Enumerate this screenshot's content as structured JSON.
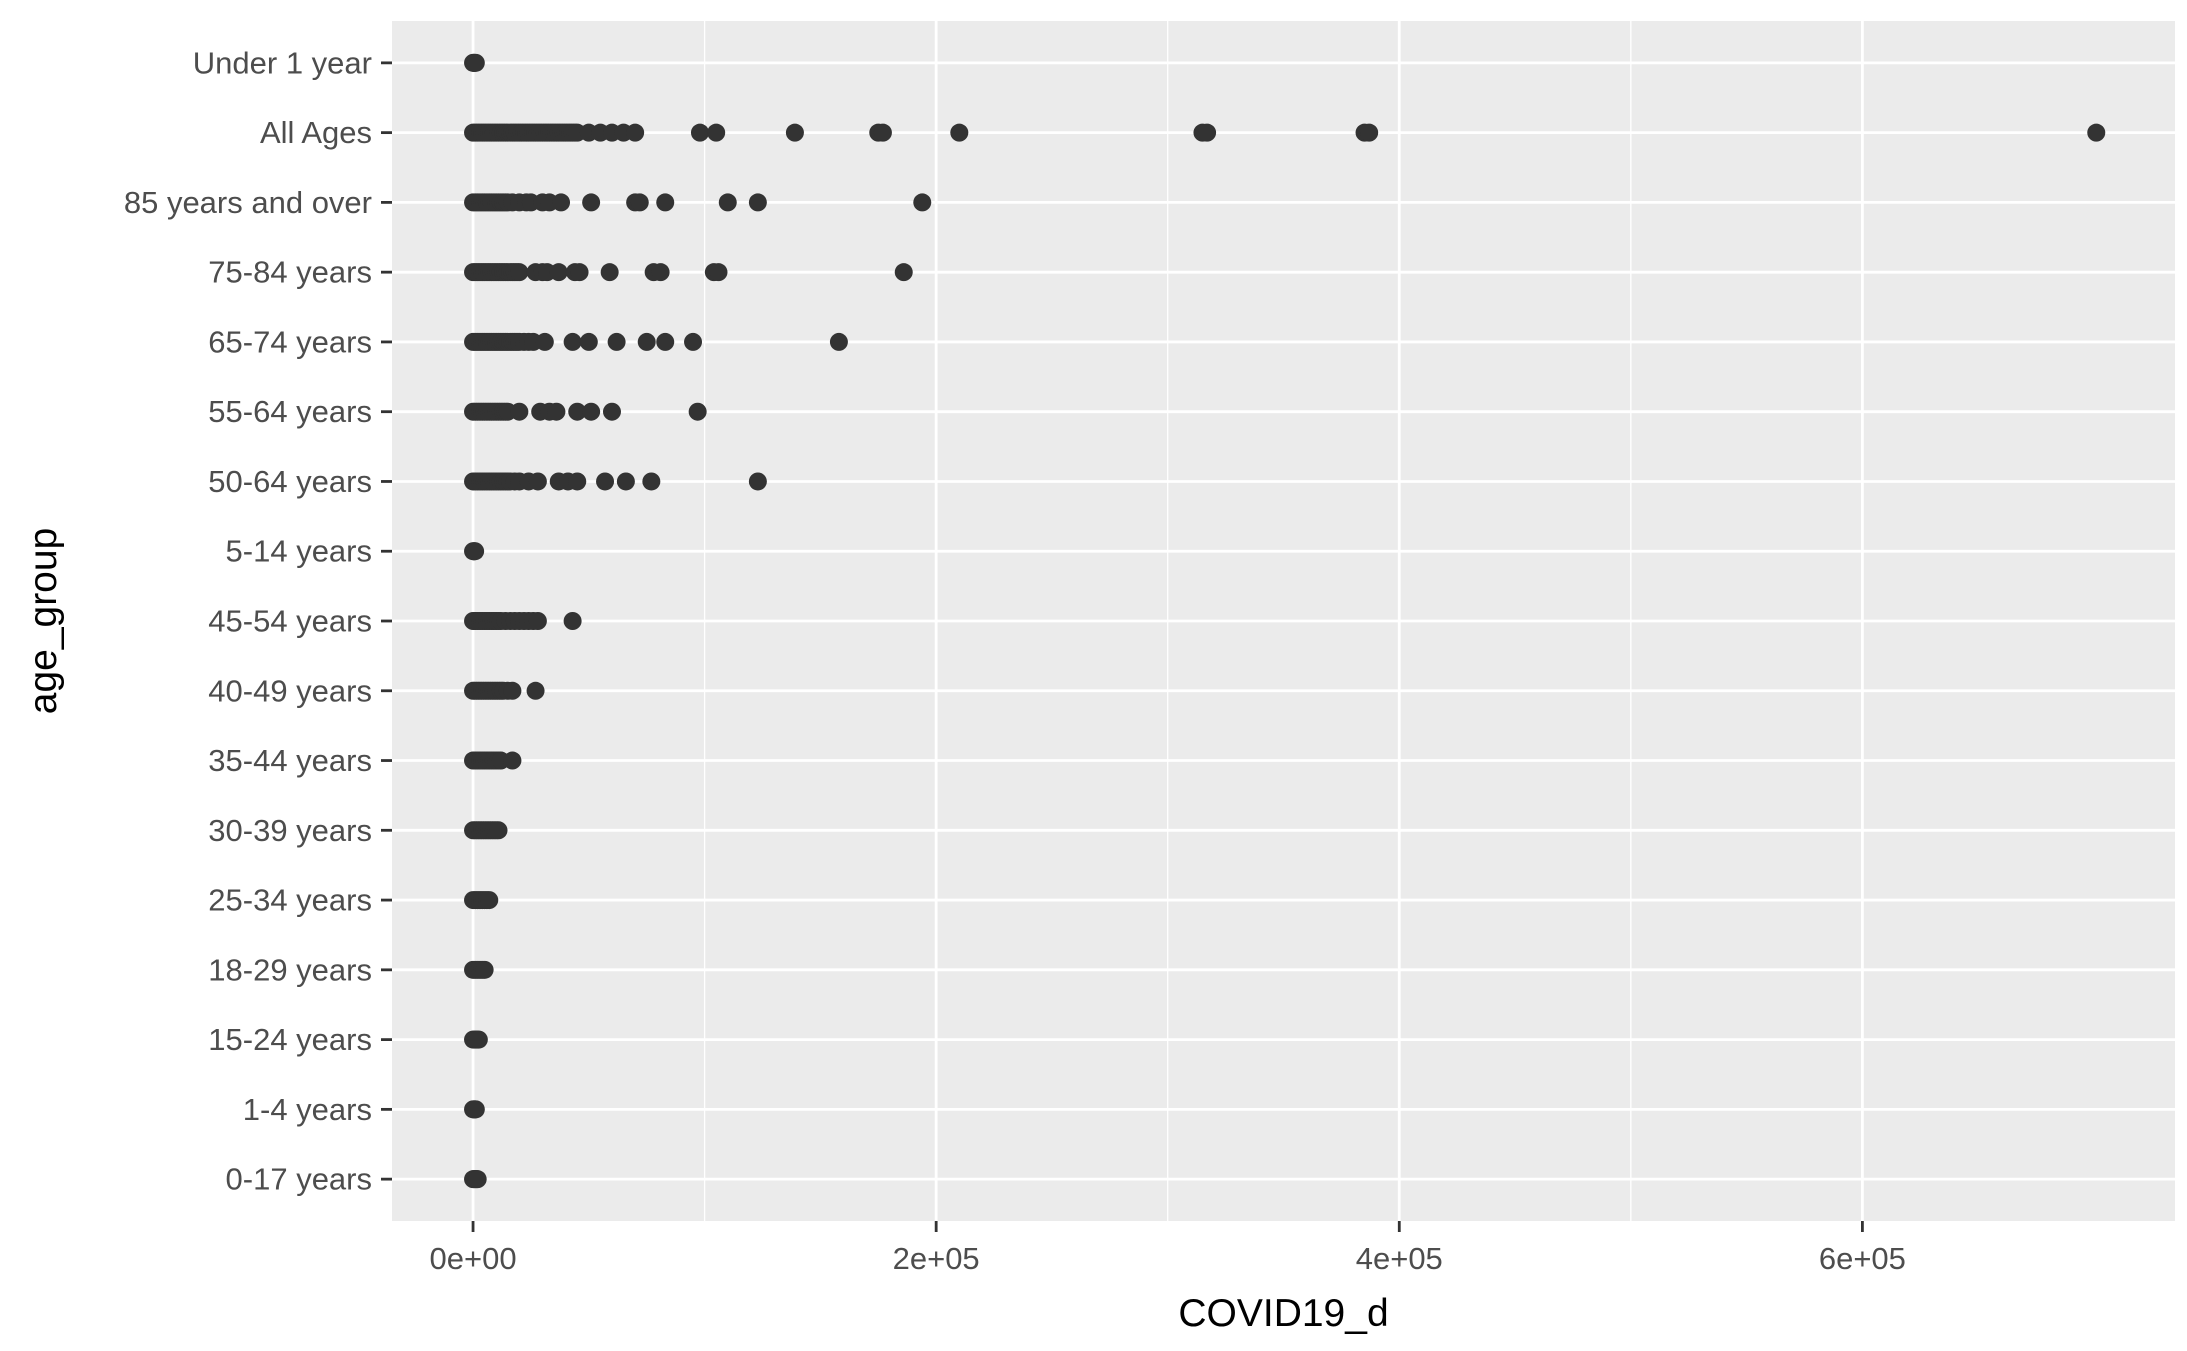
{
  "chart_data": {
    "type": "scatter",
    "xlabel": "COVID19_d",
    "ylabel": "age_group",
    "xlim": [
      -35000,
      735000
    ],
    "x_ticks": [
      0,
      200000,
      400000,
      600000
    ],
    "x_tick_labels": [
      "0e+00",
      "2e+05",
      "4e+05",
      "6e+05"
    ],
    "grid": true,
    "colors": {
      "panel": "#ebebeb",
      "grid": "#ffffff",
      "points": "#333333",
      "tick": "#333333"
    },
    "categories": [
      "Under 1 year",
      "All Ages",
      "85 years and over",
      "75-84 years",
      "65-74 years",
      "55-64 years",
      "50-64 years",
      "5-14 years",
      "45-54 years",
      "40-49 years",
      "35-44 years",
      "30-39 years",
      "25-34 years",
      "18-29 years",
      "15-24 years",
      "1-4 years",
      "0-17 years"
    ],
    "points": [
      {
        "category": "Under 1 year",
        "x": [
          0,
          200,
          500,
          800,
          1200
        ]
      },
      {
        "category": "All Ages",
        "x": [
          0,
          1000,
          2000,
          3000,
          4000,
          5000,
          6000,
          7000,
          8000,
          9000,
          10000,
          11000,
          12000,
          13000,
          14000,
          15000,
          16000,
          17000,
          18000,
          19000,
          20000,
          21000,
          22000,
          23000,
          24000,
          25000,
          26000,
          27000,
          28000,
          29000,
          30000,
          31000,
          32000,
          33000,
          34000,
          35000,
          36000,
          37000,
          38000,
          39000,
          40000,
          41000,
          42000,
          43000,
          44000,
          45000,
          50000,
          55000,
          60000,
          65000,
          70000,
          98000,
          105000,
          139000,
          175000,
          177000,
          210000,
          315000,
          317000,
          385000,
          387000,
          701000
        ]
      },
      {
        "category": "85 years and over",
        "x": [
          0,
          1000,
          2000,
          3000,
          4000,
          5000,
          6000,
          7000,
          8000,
          9000,
          10000,
          11000,
          12000,
          13000,
          14000,
          15000,
          17000,
          20000,
          23000,
          25000,
          30000,
          33000,
          38000,
          51000,
          70000,
          72000,
          83000,
          110000,
          123000,
          194000
        ]
      },
      {
        "category": "75-84 years",
        "x": [
          0,
          1000,
          2000,
          3000,
          4000,
          5000,
          6000,
          7000,
          8000,
          9000,
          10000,
          11000,
          12000,
          13000,
          14000,
          15000,
          16000,
          17000,
          18000,
          19000,
          20000,
          27000,
          30000,
          32000,
          37000,
          44000,
          46000,
          59000,
          78000,
          81000,
          104000,
          106000,
          186000
        ]
      },
      {
        "category": "65-74 years",
        "x": [
          0,
          1000,
          2000,
          3000,
          4000,
          5000,
          6000,
          7000,
          8000,
          9000,
          10000,
          11000,
          12000,
          13000,
          14000,
          15000,
          16000,
          17000,
          18000,
          19000,
          20000,
          22000,
          24000,
          26000,
          31000,
          43000,
          50000,
          62000,
          75000,
          83000,
          95000,
          158000
        ]
      },
      {
        "category": "55-64 years",
        "x": [
          0,
          1000,
          2000,
          3000,
          4000,
          5000,
          6000,
          7000,
          8000,
          9000,
          10000,
          11000,
          12000,
          13000,
          14000,
          15000,
          20000,
          29000,
          33000,
          36000,
          45000,
          51000,
          60000,
          97000
        ]
      },
      {
        "category": "50-64 years",
        "x": [
          0,
          1000,
          2000,
          3000,
          4000,
          5000,
          6000,
          7000,
          8000,
          9000,
          10000,
          11000,
          12000,
          13000,
          14000,
          15000,
          16000,
          18000,
          20000,
          24000,
          28000,
          37000,
          41000,
          45000,
          57000,
          66000,
          77000,
          123000
        ]
      },
      {
        "category": "5-14 years",
        "x": [
          0,
          300,
          600,
          900
        ]
      },
      {
        "category": "45-54 years",
        "x": [
          0,
          1000,
          2000,
          3000,
          4000,
          5000,
          6000,
          7000,
          8000,
          9000,
          10000,
          11000,
          12000,
          14000,
          16000,
          18000,
          20000,
          22000,
          24000,
          26000,
          28000,
          43000
        ]
      },
      {
        "category": "40-49 years",
        "x": [
          0,
          1000,
          2000,
          3000,
          4000,
          5000,
          6000,
          7000,
          8000,
          9000,
          10000,
          11000,
          12000,
          13000,
          15000,
          17000,
          27000
        ]
      },
      {
        "category": "35-44 years",
        "x": [
          0,
          1000,
          2000,
          3000,
          4000,
          5000,
          6000,
          7000,
          8000,
          9000,
          10000,
          11000,
          12000,
          17000
        ]
      },
      {
        "category": "30-39 years",
        "x": [
          0,
          1000,
          2000,
          3000,
          4000,
          5000,
          6000,
          7000,
          8000,
          9000,
          10000,
          11000
        ]
      },
      {
        "category": "25-34 years",
        "x": [
          0,
          1000,
          2000,
          3000,
          4000,
          5000,
          6000,
          7000
        ]
      },
      {
        "category": "18-29 years",
        "x": [
          0,
          1000,
          2000,
          3000,
          4000,
          5000
        ]
      },
      {
        "category": "15-24 years",
        "x": [
          0,
          500,
          1000,
          1500,
          2000,
          2500
        ]
      },
      {
        "category": "1-4 years",
        "x": [
          0,
          300,
          600,
          900,
          1200
        ]
      },
      {
        "category": "0-17 years",
        "x": [
          0,
          400,
          800,
          1200,
          1600,
          2000
        ]
      }
    ]
  }
}
